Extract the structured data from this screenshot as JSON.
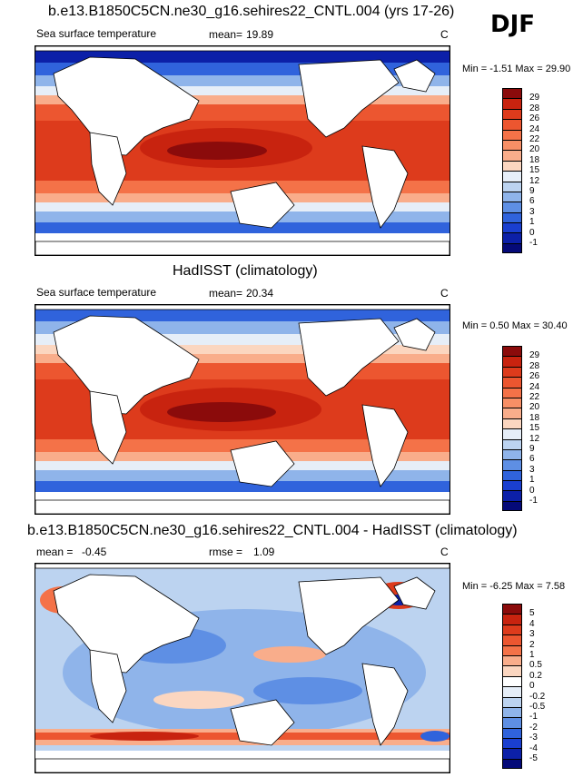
{
  "season": "DJF",
  "panels": [
    {
      "title": "b.e13.B1850C5CN.ne30_g16.sehires22_CNTL.004 (yrs 17-26)",
      "variable": "Sea surface temperature",
      "stat1_label": "mean=",
      "stat1_value": "19.89",
      "stat2_label": "",
      "stat2_value": "",
      "units": "C",
      "minmax": "Min = -1.51 Max = 29.90",
      "colorbar_labels": [
        "29",
        "28",
        "26",
        "24",
        "22",
        "20",
        "18",
        "15",
        "12",
        "9",
        "6",
        "3",
        "1",
        "0",
        "-1"
      ],
      "colorbar_colors": [
        "#8b0b0b",
        "#c8230f",
        "#dd3b1c",
        "#ec5630",
        "#f47248",
        "#f78f66",
        "#f9ad8b",
        "#fbd6c0",
        "#e6eef8",
        "#bcd3f0",
        "#8fb4ea",
        "#5e8fe4",
        "#3063dc",
        "#1a3fd0",
        "#0c20a8",
        "#050a78"
      ],
      "map_style": "sst"
    },
    {
      "title": "HadISST (climatology)",
      "variable": "Sea surface temperature",
      "stat1_label": "mean=",
      "stat1_value": "20.34",
      "stat2_label": "",
      "stat2_value": "",
      "units": "C",
      "minmax": "Min =  0.50 Max = 30.40",
      "colorbar_labels": [
        "29",
        "28",
        "26",
        "24",
        "22",
        "20",
        "18",
        "15",
        "12",
        "9",
        "6",
        "3",
        "1",
        "0",
        "-1"
      ],
      "colorbar_colors": [
        "#8b0b0b",
        "#c8230f",
        "#dd3b1c",
        "#ec5630",
        "#f47248",
        "#f78f66",
        "#f9ad8b",
        "#fbd6c0",
        "#e6eef8",
        "#bcd3f0",
        "#8fb4ea",
        "#5e8fe4",
        "#3063dc",
        "#1a3fd0",
        "#0c20a8",
        "#050a78"
      ],
      "map_style": "sst"
    },
    {
      "title": "b.e13.B1850C5CN.ne30_g16.sehires22_CNTL.004 - HadISST (climatology)",
      "variable": "",
      "stat1_label": "mean =",
      "stat1_value": "-0.45",
      "stat2_label": "rmse =",
      "stat2_value": "1.09",
      "units": "C",
      "minmax": "Min = -6.25 Max =  7.58",
      "colorbar_labels": [
        "5",
        "4",
        "3",
        "2",
        "1",
        "0.5",
        "0.2",
        "0",
        "-0.2",
        "-0.5",
        "-1",
        "-2",
        "-3",
        "-4",
        "-5"
      ],
      "colorbar_colors": [
        "#8b0b0b",
        "#c8230f",
        "#dd3b1c",
        "#ec5630",
        "#f47248",
        "#f9ad8b",
        "#fbd6c0",
        "#ffffff",
        "#e6eef8",
        "#bcd3f0",
        "#8fb4ea",
        "#5e8fe4",
        "#3063dc",
        "#1a3fd0",
        "#0c20a8",
        "#050a78"
      ],
      "map_style": "diff"
    }
  ]
}
